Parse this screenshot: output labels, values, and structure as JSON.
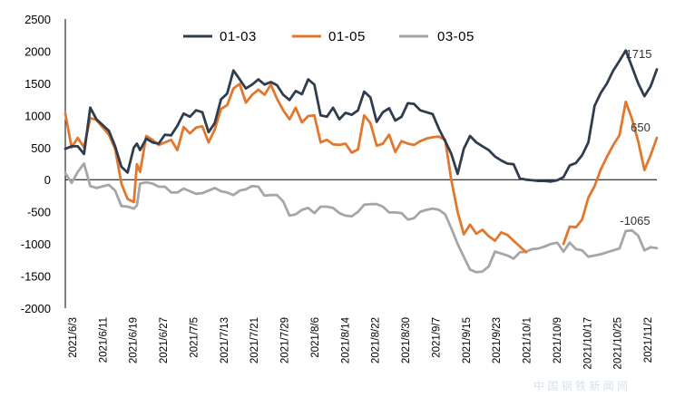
{
  "chart_data": {
    "type": "line",
    "title": "",
    "xlabel": "",
    "ylabel": "",
    "ylim": [
      -2000,
      2500
    ],
    "yticks": [
      2500,
      2000,
      1500,
      1000,
      500,
      0,
      -500,
      -1000,
      -1500,
      -2000
    ],
    "grid": false,
    "legend_position": "top",
    "x_tick_labels": [
      "2021/6/3",
      "2021/6/11",
      "2021/6/19",
      "2021/6/27",
      "2021/7/5",
      "2021/7/13",
      "2021/7/21",
      "2021/7/29",
      "2021/8/6",
      "2021/8/14",
      "2021/8/22",
      "2021/8/30",
      "2021/9/7",
      "2021/9/15",
      "2021/9/23",
      "2021/10/1",
      "2021/10/9",
      "2021/10/17",
      "2021/10/25",
      "2021/11/2"
    ],
    "series": [
      {
        "name": "01-03",
        "color": "#2f3d4f",
        "values": [
          [
            0,
            480
          ],
          [
            2,
            520
          ],
          [
            4,
            520
          ],
          [
            6,
            400
          ],
          [
            8,
            1120
          ],
          [
            10,
            940
          ],
          [
            14,
            760
          ],
          [
            16,
            520
          ],
          [
            18,
            200
          ],
          [
            20,
            110
          ],
          [
            22,
            500
          ],
          [
            23,
            560
          ],
          [
            24,
            460
          ],
          [
            26,
            640
          ],
          [
            28,
            580
          ],
          [
            30,
            560
          ],
          [
            32,
            700
          ],
          [
            34,
            690
          ],
          [
            36,
            840
          ],
          [
            38,
            1030
          ],
          [
            40,
            980
          ],
          [
            42,
            1080
          ],
          [
            44,
            1050
          ],
          [
            46,
            740
          ],
          [
            48,
            880
          ],
          [
            50,
            1250
          ],
          [
            52,
            1340
          ],
          [
            54,
            1700
          ],
          [
            56,
            1560
          ],
          [
            58,
            1420
          ],
          [
            60,
            1480
          ],
          [
            62,
            1560
          ],
          [
            64,
            1480
          ],
          [
            66,
            1520
          ],
          [
            68,
            1470
          ],
          [
            70,
            1320
          ],
          [
            72,
            1240
          ],
          [
            74,
            1380
          ],
          [
            76,
            1330
          ],
          [
            78,
            1560
          ],
          [
            80,
            1480
          ],
          [
            82,
            1000
          ],
          [
            84,
            980
          ],
          [
            86,
            1120
          ],
          [
            88,
            940
          ],
          [
            90,
            1040
          ],
          [
            92,
            1010
          ],
          [
            94,
            1080
          ],
          [
            96,
            1370
          ],
          [
            98,
            1280
          ],
          [
            100,
            900
          ],
          [
            102,
            1050
          ],
          [
            104,
            1110
          ],
          [
            106,
            920
          ],
          [
            108,
            980
          ],
          [
            110,
            1190
          ],
          [
            112,
            1180
          ],
          [
            114,
            1080
          ],
          [
            116,
            1050
          ],
          [
            118,
            1020
          ],
          [
            120,
            790
          ],
          [
            122,
            600
          ],
          [
            124,
            400
          ],
          [
            126,
            90
          ],
          [
            128,
            480
          ],
          [
            130,
            680
          ],
          [
            132,
            580
          ],
          [
            134,
            520
          ],
          [
            136,
            460
          ],
          [
            138,
            360
          ],
          [
            140,
            300
          ],
          [
            142,
            250
          ],
          [
            144,
            240
          ],
          [
            146,
            20
          ],
          [
            148,
            0
          ],
          [
            150,
            -10
          ],
          [
            152,
            -20
          ],
          [
            154,
            -20
          ],
          [
            156,
            -30
          ],
          [
            158,
            -10
          ],
          [
            160,
            40
          ],
          [
            162,
            220
          ],
          [
            164,
            260
          ],
          [
            166,
            380
          ],
          [
            168,
            580
          ],
          [
            170,
            1150
          ],
          [
            172,
            1350
          ],
          [
            174,
            1500
          ],
          [
            176,
            1700
          ],
          [
            178,
            1850
          ],
          [
            180,
            2010
          ],
          [
            182,
            1760
          ],
          [
            184,
            1500
          ],
          [
            186,
            1300
          ],
          [
            188,
            1450
          ],
          [
            190,
            1715
          ]
        ]
      },
      {
        "name": "01-05",
        "color": "#e2772e",
        "values": [
          [
            0,
            1030
          ],
          [
            2,
            500
          ],
          [
            4,
            650
          ],
          [
            6,
            500
          ],
          [
            8,
            960
          ],
          [
            10,
            930
          ],
          [
            14,
            700
          ],
          [
            16,
            480
          ],
          [
            18,
            -60
          ],
          [
            20,
            -300
          ],
          [
            22,
            -350
          ],
          [
            23,
            240
          ],
          [
            24,
            120
          ],
          [
            26,
            680
          ],
          [
            28,
            620
          ],
          [
            30,
            540
          ],
          [
            32,
            580
          ],
          [
            34,
            620
          ],
          [
            36,
            460
          ],
          [
            38,
            820
          ],
          [
            40,
            720
          ],
          [
            42,
            810
          ],
          [
            44,
            830
          ],
          [
            46,
            580
          ],
          [
            48,
            780
          ],
          [
            50,
            1100
          ],
          [
            52,
            1160
          ],
          [
            54,
            1420
          ],
          [
            56,
            1490
          ],
          [
            58,
            1200
          ],
          [
            60,
            1320
          ],
          [
            62,
            1400
          ],
          [
            64,
            1320
          ],
          [
            66,
            1480
          ],
          [
            68,
            1260
          ],
          [
            70,
            1080
          ],
          [
            72,
            940
          ],
          [
            74,
            1120
          ],
          [
            76,
            890
          ],
          [
            78,
            990
          ],
          [
            80,
            1000
          ],
          [
            82,
            580
          ],
          [
            84,
            620
          ],
          [
            86,
            550
          ],
          [
            88,
            540
          ],
          [
            90,
            560
          ],
          [
            92,
            420
          ],
          [
            94,
            470
          ],
          [
            96,
            1000
          ],
          [
            98,
            880
          ],
          [
            100,
            530
          ],
          [
            102,
            560
          ],
          [
            104,
            700
          ],
          [
            106,
            430
          ],
          [
            108,
            600
          ],
          [
            110,
            560
          ],
          [
            112,
            540
          ],
          [
            114,
            600
          ],
          [
            116,
            640
          ],
          [
            118,
            660
          ],
          [
            120,
            670
          ],
          [
            122,
            620
          ],
          [
            124,
            -10
          ],
          [
            126,
            -500
          ],
          [
            128,
            -850
          ],
          [
            130,
            -700
          ],
          [
            132,
            -840
          ],
          [
            134,
            -780
          ],
          [
            136,
            -880
          ],
          [
            138,
            -950
          ],
          [
            140,
            -820
          ],
          [
            142,
            -860
          ],
          [
            144,
            -950
          ],
          [
            146,
            -1040
          ],
          [
            148,
            -1130
          ]
        ],
        "values_after_gap": [
          [
            160,
            -1000
          ],
          [
            162,
            -730
          ],
          [
            164,
            -740
          ],
          [
            166,
            -620
          ],
          [
            168,
            -280
          ],
          [
            170,
            -100
          ],
          [
            172,
            160
          ],
          [
            174,
            360
          ],
          [
            176,
            540
          ],
          [
            178,
            690
          ],
          [
            180,
            1210
          ],
          [
            182,
            950
          ],
          [
            184,
            600
          ],
          [
            186,
            150
          ],
          [
            188,
            380
          ],
          [
            190,
            650
          ]
        ]
      },
      {
        "name": "03-05",
        "color": "#a6a6a6",
        "values": [
          [
            0,
            100
          ],
          [
            2,
            -50
          ],
          [
            4,
            120
          ],
          [
            6,
            250
          ],
          [
            8,
            -100
          ],
          [
            10,
            -130
          ],
          [
            14,
            -80
          ],
          [
            16,
            -170
          ],
          [
            18,
            -410
          ],
          [
            20,
            -420
          ],
          [
            22,
            -450
          ],
          [
            23,
            -400
          ],
          [
            24,
            -60
          ],
          [
            26,
            -40
          ],
          [
            28,
            -60
          ],
          [
            30,
            -110
          ],
          [
            32,
            -110
          ],
          [
            34,
            -200
          ],
          [
            36,
            -200
          ],
          [
            38,
            -140
          ],
          [
            40,
            -180
          ],
          [
            42,
            -220
          ],
          [
            44,
            -210
          ],
          [
            46,
            -170
          ],
          [
            48,
            -130
          ],
          [
            50,
            -180
          ],
          [
            52,
            -200
          ],
          [
            54,
            -240
          ],
          [
            56,
            -170
          ],
          [
            58,
            -150
          ],
          [
            60,
            -100
          ],
          [
            62,
            -110
          ],
          [
            64,
            -250
          ],
          [
            66,
            -240
          ],
          [
            68,
            -240
          ],
          [
            70,
            -340
          ],
          [
            72,
            -560
          ],
          [
            74,
            -540
          ],
          [
            76,
            -470
          ],
          [
            78,
            -440
          ],
          [
            80,
            -520
          ],
          [
            82,
            -420
          ],
          [
            84,
            -420
          ],
          [
            86,
            -440
          ],
          [
            88,
            -520
          ],
          [
            90,
            -560
          ],
          [
            92,
            -570
          ],
          [
            94,
            -500
          ],
          [
            96,
            -390
          ],
          [
            98,
            -380
          ],
          [
            100,
            -380
          ],
          [
            102,
            -420
          ],
          [
            104,
            -510
          ],
          [
            106,
            -510
          ],
          [
            108,
            -520
          ],
          [
            110,
            -620
          ],
          [
            112,
            -600
          ],
          [
            114,
            -500
          ],
          [
            116,
            -470
          ],
          [
            118,
            -450
          ],
          [
            120,
            -470
          ],
          [
            122,
            -540
          ],
          [
            124,
            -760
          ],
          [
            126,
            -1000
          ],
          [
            128,
            -1200
          ],
          [
            130,
            -1400
          ],
          [
            132,
            -1440
          ],
          [
            134,
            -1430
          ],
          [
            136,
            -1350
          ],
          [
            138,
            -1120
          ],
          [
            140,
            -1150
          ],
          [
            142,
            -1180
          ],
          [
            144,
            -1230
          ],
          [
            146,
            -1130
          ],
          [
            148,
            -1120
          ],
          [
            150,
            -1080
          ],
          [
            152,
            -1070
          ],
          [
            154,
            -1040
          ],
          [
            156,
            -1000
          ],
          [
            158,
            -980
          ],
          [
            160,
            -1120
          ],
          [
            162,
            -980
          ],
          [
            164,
            -1080
          ],
          [
            166,
            -1100
          ],
          [
            168,
            -1200
          ],
          [
            170,
            -1180
          ],
          [
            172,
            -1160
          ],
          [
            174,
            -1130
          ],
          [
            176,
            -1100
          ],
          [
            178,
            -1070
          ],
          [
            180,
            -800
          ],
          [
            182,
            -790
          ],
          [
            184,
            -870
          ],
          [
            186,
            -1100
          ],
          [
            188,
            -1050
          ],
          [
            190,
            -1065
          ]
        ]
      }
    ],
    "annotations": [
      {
        "text": "1715",
        "series": "01-03"
      },
      {
        "text": "650",
        "series": "01-05"
      },
      {
        "text": "-1065",
        "series": "03-05"
      }
    ],
    "x_domain": [
      0,
      190
    ]
  },
  "watermark": "中 国 钢 铁 新 闻 网"
}
